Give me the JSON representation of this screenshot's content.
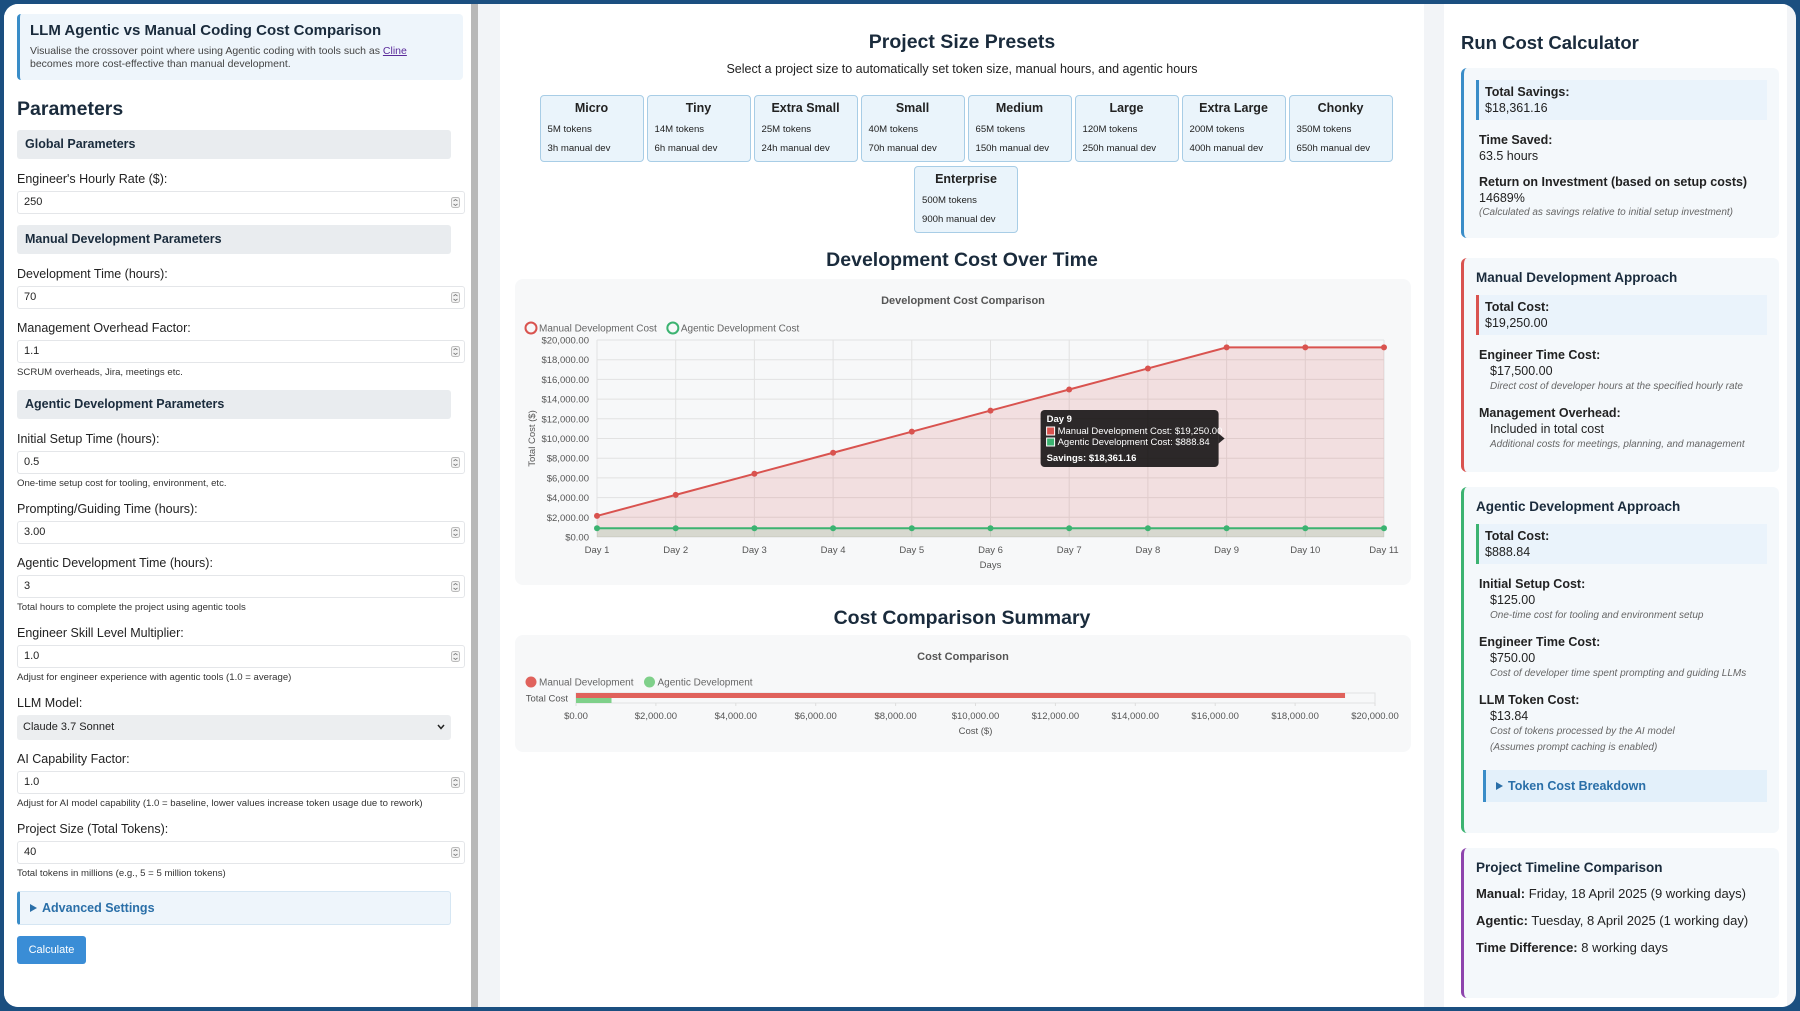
{
  "header": {
    "title": "LLM Agentic vs Manual Coding Cost Comparison",
    "description": [
      "Visualise the crossover point where using Agentic coding with tools such as ",
      "Cline",
      " becomes more cost-effective than manual development."
    ]
  },
  "parameters": {
    "title": "Parameters",
    "sections": [
      {
        "title": "Global Parameters",
        "fields": [
          {
            "label": "Engineer's Hourly Rate ($):",
            "value": "250"
          }
        ]
      },
      {
        "title": "Manual Development Parameters",
        "fields": [
          {
            "label": "Development Time (hours):",
            "value": "70"
          },
          {
            "label": "Management Overhead Factor:",
            "value": "1.1",
            "hint": "SCRUM overheads, Jira, meetings etc."
          }
        ]
      },
      {
        "title": "Agentic Development Parameters",
        "fields": [
          {
            "label": "Initial Setup Time (hours):",
            "value": "0.5",
            "hint": "One-time setup cost for tooling, environment, etc."
          },
          {
            "label": "Prompting/Guiding Time (hours):",
            "value": "3.00"
          },
          {
            "label": "Agentic Development Time (hours):",
            "value": "3",
            "hint": "Total hours to complete the project using agentic tools"
          },
          {
            "label": "Engineer Skill Level Multiplier:",
            "value": "1.0",
            "hint": "Adjust for engineer experience with agentic tools (1.0 = average)"
          },
          {
            "label": "LLM Model:",
            "selected": "Claude 3.7 Sonnet"
          },
          {
            "label": "AI Capability Factor:",
            "value": "1.0",
            "hint": "Adjust for AI model capability (1.0 = baseline, lower values increase token usage due to rework)"
          },
          {
            "label": "Project Size (Total Tokens):",
            "value": "40",
            "hint": "Total tokens in millions (e.g., 5 = 5 million tokens)"
          }
        ]
      }
    ],
    "advanced": "Advanced Settings",
    "button": "Calculate"
  },
  "presets": {
    "title": "Project Size Presets",
    "subtitle": "Select a project size to automatically set token size, manual hours, and agentic hours",
    "items": [
      {
        "name": "Micro",
        "tokens": "5M tokens",
        "manual": "3h manual dev"
      },
      {
        "name": "Tiny",
        "tokens": "14M tokens",
        "manual": "6h manual dev"
      },
      {
        "name": "Extra Small",
        "tokens": "25M tokens",
        "manual": "24h manual dev"
      },
      {
        "name": "Small",
        "tokens": "40M tokens",
        "manual": "70h manual dev"
      },
      {
        "name": "Medium",
        "tokens": "65M tokens",
        "manual": "150h manual dev"
      },
      {
        "name": "Large",
        "tokens": "120M tokens",
        "manual": "250h manual dev"
      },
      {
        "name": "Extra Large",
        "tokens": "200M tokens",
        "manual": "400h manual dev"
      },
      {
        "name": "Chonky",
        "tokens": "350M tokens",
        "manual": "650h manual dev"
      },
      {
        "name": "Enterprise",
        "tokens": "500M tokens",
        "manual": "900h manual dev"
      }
    ]
  },
  "time_section": {
    "title": "Development Cost Over Time"
  },
  "line_chart": {
    "type": "line",
    "title": "Development Cost Comparison",
    "x_label": "Days",
    "y_label": "Total Cost ($)",
    "categories": [
      "Day 1",
      "Day 2",
      "Day 3",
      "Day 4",
      "Day 5",
      "Day 6",
      "Day 7",
      "Day 8",
      "Day 9",
      "Day 10",
      "Day 11"
    ],
    "series": [
      {
        "name": "Manual Development Cost",
        "color": "#d9534f",
        "values": [
          2138.89,
          4277.78,
          6416.67,
          8555.56,
          10694.44,
          12833.33,
          14972.22,
          17111.11,
          19250,
          19250,
          19250
        ]
      },
      {
        "name": "Agentic Development Cost",
        "color": "#3cb371",
        "values": [
          888.84,
          888.84,
          888.84,
          888.84,
          888.84,
          888.84,
          888.84,
          888.84,
          888.84,
          888.84,
          888.84
        ]
      }
    ],
    "ylim": [
      0,
      20000
    ],
    "yticks": [
      {
        "value": 0,
        "label": "$0.00"
      },
      {
        "value": 2000,
        "label": "$2,000.00"
      },
      {
        "value": 4000,
        "label": "$4,000.00"
      },
      {
        "value": 6000,
        "label": "$6,000.00"
      },
      {
        "value": 8000,
        "label": "$8,000.00"
      },
      {
        "value": 10000,
        "label": "$10,000.00"
      },
      {
        "value": 12000,
        "label": "$12,000.00"
      },
      {
        "value": 14000,
        "label": "$14,000.00"
      },
      {
        "value": 16000,
        "label": "$16,000.00"
      },
      {
        "value": 18000,
        "label": "$18,000.00"
      },
      {
        "value": 20000,
        "label": "$20,000.00"
      }
    ],
    "grid": true,
    "tooltip": {
      "title": "Day 9",
      "lines": [
        "Manual Development Cost: $19,250.00",
        "Agentic Development Cost: $888.84"
      ],
      "footer": "Savings: $18,361.16"
    }
  },
  "summary_section": {
    "title": "Cost Comparison Summary"
  },
  "bar_chart": {
    "type": "bar",
    "orientation": "horizontal",
    "title": "Cost Comparison",
    "x_label": "Cost ($)",
    "categories": [
      "Total Cost"
    ],
    "series": [
      {
        "name": "Manual Development",
        "color": "#e0625c",
        "values": [
          19250
        ]
      },
      {
        "name": "Agentic Development",
        "color": "#7fd08a",
        "values": [
          888.84
        ]
      }
    ],
    "xlim": [
      0,
      20000
    ],
    "xticks": [
      {
        "value": 0,
        "label": "$0.00"
      },
      {
        "value": 2000,
        "label": "$2,000.00"
      },
      {
        "value": 4000,
        "label": "$4,000.00"
      },
      {
        "value": 6000,
        "label": "$6,000.00"
      },
      {
        "value": 8000,
        "label": "$8,000.00"
      },
      {
        "value": 10000,
        "label": "$10,000.00"
      },
      {
        "value": 12000,
        "label": "$12,000.00"
      },
      {
        "value": 14000,
        "label": "$14,000.00"
      },
      {
        "value": 16000,
        "label": "$16,000.00"
      },
      {
        "value": 18000,
        "label": "$18,000.00"
      },
      {
        "value": 20000,
        "label": "$20,000.00"
      }
    ]
  },
  "calculator": {
    "title": "Run Cost Calculator",
    "summary": {
      "total_savings": {
        "label": "Total Savings:",
        "value": "$18,361.16"
      },
      "time_saved": {
        "label": "Time Saved:",
        "value": "63.5 hours"
      },
      "roi": {
        "label": "Return on Investment (based on setup costs)",
        "value": "14689%",
        "note": "(Calculated as savings relative to initial setup investment)"
      }
    },
    "manual": {
      "title": "Manual Development Approach",
      "total": {
        "label": "Total Cost:",
        "value": "$19,250.00"
      },
      "items": [
        {
          "label": "Engineer Time Cost:",
          "value": "$17,500.00",
          "notes": [
            "Direct cost of developer hours at the specified hourly rate"
          ]
        },
        {
          "label": "Management Overhead:",
          "value": "Included in total cost",
          "notes": [
            "Additional costs for meetings, planning, and management"
          ]
        }
      ]
    },
    "agentic": {
      "title": "Agentic Development Approach",
      "total": {
        "label": "Total Cost:",
        "value": "$888.84"
      },
      "items": [
        {
          "label": "Initial Setup Cost:",
          "value": "$125.00",
          "notes": [
            "One-time cost for tooling and environment setup"
          ]
        },
        {
          "label": "Engineer Time Cost:",
          "value": "$750.00",
          "notes": [
            "Cost of developer time spent prompting and guiding LLMs"
          ]
        },
        {
          "label": "LLM Token Cost:",
          "value": "$13.84",
          "notes": [
            "Cost of tokens processed by the AI model",
            "(Assumes prompt caching is enabled)"
          ]
        }
      ],
      "breakdown": "Token Cost Breakdown"
    },
    "timeline": {
      "title": "Project Timeline Comparison",
      "rows": [
        {
          "label": "Manual:",
          "value": "Friday, 18 April 2025 (9 working days)"
        },
        {
          "label": "Agentic:",
          "value": "Tuesday, 8 April 2025 (1 working day)"
        },
        {
          "label": "Time Difference:",
          "value": "8 working days"
        }
      ]
    }
  }
}
